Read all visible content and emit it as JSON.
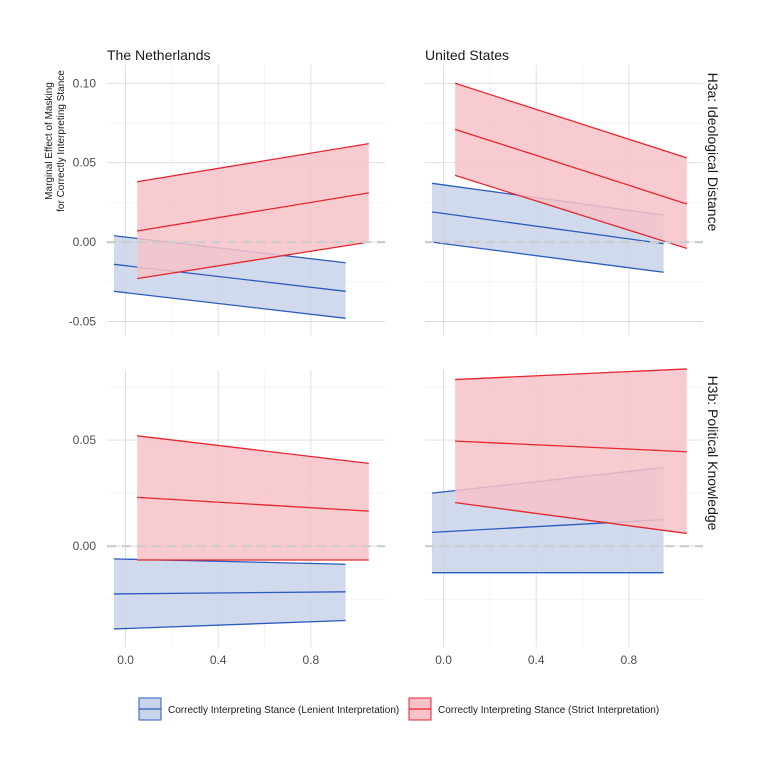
{
  "chart_data": {
    "type": "area",
    "ylabel_lines": [
      "Marginal Effect of Masking",
      "for Correctly Interpreting Stance"
    ],
    "xlabel": "",
    "xlim": [
      -0.08,
      1.12
    ],
    "x_ticks": [
      0.0,
      0.4,
      0.8
    ],
    "x_tick_labels": [
      "0.0",
      "0.4",
      "0.8"
    ],
    "reference_line": 0,
    "grid": true,
    "legend_position": "bottom",
    "column_labels": [
      "The Netherlands",
      "United States"
    ],
    "row_labels": [
      "H3a: Ideological Distance",
      "H3b: Political Knowledge"
    ],
    "rows": [
      {
        "ylim": [
          -0.0585,
          0.1115
        ],
        "y_ticks": [
          -0.05,
          0.0,
          0.05,
          0.1
        ],
        "y_tick_labels": [
          "-0.05",
          "0.00",
          "0.05",
          "0.10"
        ]
      },
      {
        "ylim": [
          -0.0475,
          0.083
        ],
        "y_ticks": [
          0.0,
          0.05
        ],
        "y_tick_labels": [
          "0.00",
          "0.05"
        ]
      }
    ],
    "series_legend": [
      {
        "name": "Correctly Interpreting Stance (Lenient Interpretation)",
        "color": "#2a5bbf",
        "fill": "#c9d4ea"
      },
      {
        "name": "Correctly Interpreting Stance (Strict Interpretation)",
        "color": "#e8262f",
        "fill": "#f7c2c8"
      }
    ],
    "panels": [
      {
        "row": 0,
        "col": 0,
        "series": [
          {
            "x": [
              -0.05,
              0.95
            ],
            "estimate": [
              -0.014,
              -0.031
            ],
            "lower": [
              -0.031,
              -0.048
            ],
            "upper": [
              0.004,
              -0.013
            ]
          },
          {
            "x": [
              0.05,
              1.05
            ],
            "estimate": [
              0.007,
              0.031
            ],
            "lower": [
              -0.023,
              0.0
            ],
            "upper": [
              0.038,
              0.062
            ]
          }
        ]
      },
      {
        "row": 0,
        "col": 1,
        "series": [
          {
            "x": [
              -0.05,
              0.95
            ],
            "estimate": [
              0.019,
              -0.001
            ],
            "lower": [
              0.0,
              -0.019
            ],
            "upper": [
              0.037,
              0.017
            ]
          },
          {
            "x": [
              0.05,
              1.05
            ],
            "estimate": [
              0.071,
              0.024
            ],
            "lower": [
              0.042,
              -0.004
            ],
            "upper": [
              0.1,
              0.053
            ]
          }
        ]
      },
      {
        "row": 1,
        "col": 0,
        "series": [
          {
            "x": [
              -0.05,
              0.95
            ],
            "estimate": [
              -0.0225,
              -0.0215
            ],
            "lower": [
              -0.039,
              -0.035
            ],
            "upper": [
              -0.006,
              -0.0085
            ]
          },
          {
            "x": [
              0.05,
              1.05
            ],
            "estimate": [
              0.023,
              0.0165
            ],
            "lower": [
              -0.0065,
              -0.0065
            ],
            "upper": [
              0.052,
              0.039
            ]
          }
        ]
      },
      {
        "row": 1,
        "col": 1,
        "series": [
          {
            "x": [
              -0.05,
              0.95
            ],
            "estimate": [
              0.0065,
              0.0125
            ],
            "lower": [
              -0.0125,
              -0.0125
            ],
            "upper": [
              0.025,
              0.037
            ]
          },
          {
            "x": [
              0.05,
              1.05
            ],
            "estimate": [
              0.0495,
              0.0445
            ],
            "lower": [
              0.0205,
              0.006
            ],
            "upper": [
              0.0785,
              0.0835
            ]
          }
        ]
      }
    ]
  }
}
